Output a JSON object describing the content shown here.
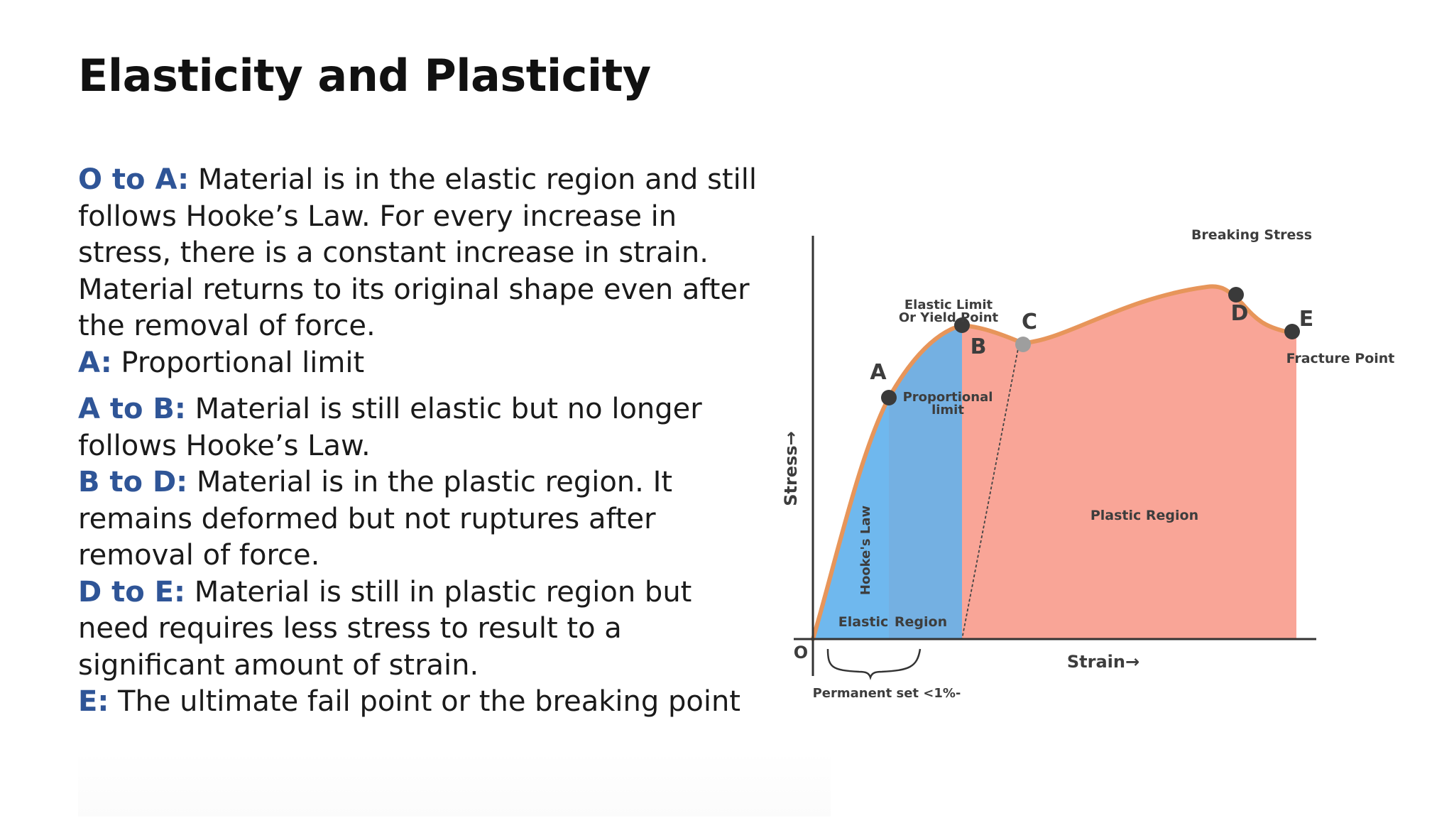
{
  "slide": {
    "title": "Elasticity and Plasticity"
  },
  "content": {
    "o_to_a": {
      "term": "O to A:",
      "text": "Material is in the elastic region and still follows Hooke’s Law. For every increase in stress, there is a constant increase in strain. Material returns to its original shape even after the removal of force."
    },
    "a": {
      "term": "A:",
      "text": "Proportional limit"
    },
    "a_to_b": {
      "term": "A to B:",
      "text": "Material is still elastic but no longer follows Hooke’s Law."
    },
    "b_to_d": {
      "term": "B to D:",
      "text": "Material is in the plastic region. It remains deformed but not ruptures after removal of force."
    },
    "d_to_e": {
      "term": "D to E:",
      "text": "Material is still in plastic region but need requires less stress to result to a significant amount of strain."
    },
    "e": {
      "term": "E:",
      "text": "The ultimate fail point or the breaking point"
    }
  },
  "diagram": {
    "y_axis_label": "Stress→",
    "x_axis_label": "Strain→",
    "origin_label": "O",
    "point_labels": {
      "a": "A",
      "b": "B",
      "c": "C",
      "d": "D",
      "e": "E"
    },
    "annotations": {
      "breaking_stress": "Breaking Stress",
      "elastic_limit_line1": "Elastic Limit",
      "elastic_limit_line2": "Or Yield Point",
      "proportional_line1": "Proportional",
      "proportional_line2": "limit",
      "fracture_point": "Fracture Point",
      "plastic_region": "Plastic Region",
      "hookes_law": "Hooke's Law",
      "elastic": "Elastic",
      "region": "Region",
      "permanent_set": "Permanent set <1%-"
    },
    "colors": {
      "hookes_region": "#6fb8ee",
      "elastic_region": "#74b0e2",
      "plastic_region": "#f9a597",
      "curve": "#e7955a",
      "point": "#3a3a3a",
      "point_c": "#9e9e9e",
      "axis": "#333333"
    }
  }
}
